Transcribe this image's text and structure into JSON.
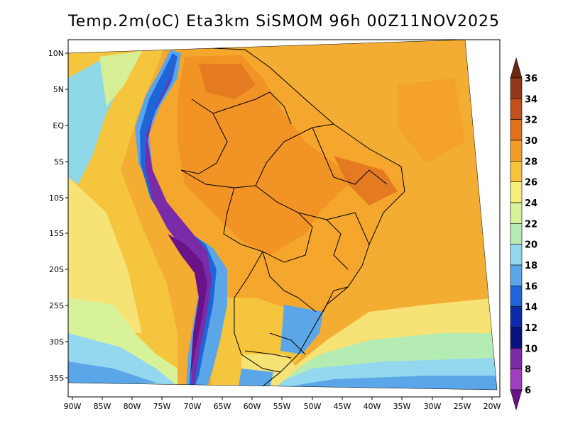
{
  "title": "Temp.2m(oC) Eta3km SiSMOM 96h 00Z11NOV2025",
  "lat_labels": [
    "10N",
    "5N",
    "EQ",
    "5S",
    "10S",
    "15S",
    "20S",
    "25S",
    "30S",
    "35S"
  ],
  "lon_labels": [
    "90W",
    "85W",
    "80W",
    "75W",
    "70W",
    "65W",
    "60W",
    "55W",
    "50W",
    "45W",
    "40W",
    "35W",
    "30W",
    "25W",
    "20W"
  ],
  "colorbar": {
    "levels": [
      "36",
      "34",
      "32",
      "30",
      "28",
      "26",
      "24",
      "22",
      "20",
      "18",
      "16",
      "14",
      "12",
      "10",
      "8",
      "6"
    ],
    "colors": [
      "#6b2a10",
      "#93391a",
      "#c0501c",
      "#e0701e",
      "#f39c2a",
      "#f8c33a",
      "#f7ee7a",
      "#d8f29a",
      "#b4ecb4",
      "#94d8f0",
      "#5aa6e8",
      "#1e66d8",
      "#0d2aa8",
      "#0a1480",
      "#7a2ca8",
      "#a040c0",
      "#6a1288"
    ]
  }
}
